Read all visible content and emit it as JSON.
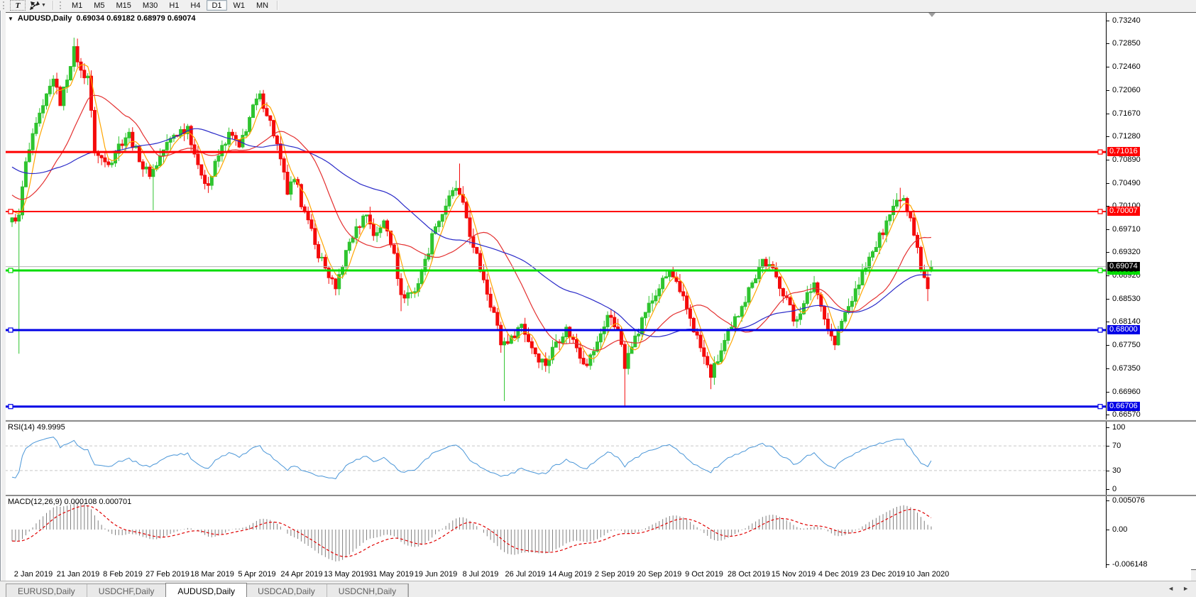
{
  "toolbar": {
    "text_tool_label": "T",
    "timeframes": [
      "M1",
      "M5",
      "M15",
      "M30",
      "H1",
      "H4",
      "D1",
      "W1",
      "MN"
    ],
    "active_timeframe": "D1"
  },
  "chart": {
    "title": "AUDUSD,Daily",
    "ohlc_line": "0.69034 0.69182 0.68979 0.69074",
    "price_axis_ticks": [
      "0.73240",
      "0.72850",
      "0.72460",
      "0.72060",
      "0.71670",
      "0.71280",
      "0.70890",
      "0.70490",
      "0.70100",
      "0.69710",
      "0.69320",
      "0.68920",
      "0.68530",
      "0.68140",
      "0.67750",
      "0.67350",
      "0.66960",
      "0.66570"
    ],
    "price_range": {
      "top": 0.7324,
      "bottom": 0.6657
    },
    "hlines": [
      {
        "label": "0.71016",
        "price": 0.71016,
        "color": "#FF0000",
        "thickness": 3,
        "text_color": "#FFFFFF",
        "handles": "right"
      },
      {
        "label": "0.70007",
        "price": 0.70007,
        "color": "#FF0000",
        "thickness": 2,
        "text_color": "#FFFFFF",
        "handles": "both"
      },
      {
        "label": "0.69010",
        "price": 0.6901,
        "color": "#00DC00",
        "thickness": 3,
        "text_color": "#003300",
        "handles": "both"
      },
      {
        "label": "0.68000",
        "price": 0.68,
        "color": "#0000E6",
        "thickness": 3,
        "text_color": "#FFFFFF",
        "handles": "both"
      },
      {
        "label": "0.66706",
        "price": 0.66706,
        "color": "#0000E6",
        "thickness": 3,
        "text_color": "#FFFFFF",
        "handles": "both"
      }
    ],
    "current_price": {
      "label": "0.69074",
      "price": 0.69074,
      "line_color": "#B4B4B4",
      "tag_bg": "#000000",
      "tag_text": "#FFFFFF"
    }
  },
  "chart_data": {
    "type": "candlestick",
    "symbol": "AUDUSD",
    "timeframe": "Daily",
    "ohlc_current": {
      "open": 0.69034,
      "high": 0.69182,
      "low": 0.68979,
      "close": 0.69074
    },
    "bars": 268,
    "first_open": 0.6983,
    "close_anchors": [
      [
        0,
        0.699
      ],
      [
        2,
        0.6995
      ],
      [
        4,
        0.7085
      ],
      [
        9,
        0.718
      ],
      [
        12,
        0.7225
      ],
      [
        14,
        0.718
      ],
      [
        18,
        0.728
      ],
      [
        20,
        0.724
      ],
      [
        22,
        0.723
      ],
      [
        24,
        0.71
      ],
      [
        28,
        0.708
      ],
      [
        31,
        0.7115
      ],
      [
        34,
        0.7135
      ],
      [
        37,
        0.7085
      ],
      [
        40,
        0.706
      ],
      [
        44,
        0.7105
      ],
      [
        47,
        0.713
      ],
      [
        51,
        0.7145
      ],
      [
        54,
        0.708
      ],
      [
        57,
        0.7045
      ],
      [
        60,
        0.7095
      ],
      [
        63,
        0.7135
      ],
      [
        66,
        0.711
      ],
      [
        69,
        0.716
      ],
      [
        72,
        0.72
      ],
      [
        75,
        0.7155
      ],
      [
        78,
        0.709
      ],
      [
        80,
        0.703
      ],
      [
        82,
        0.7055
      ],
      [
        85,
        0.7
      ],
      [
        88,
        0.6945
      ],
      [
        91,
        0.6905
      ],
      [
        94,
        0.687
      ],
      [
        97,
        0.6935
      ],
      [
        100,
        0.6975
      ],
      [
        103,
        0.6995
      ],
      [
        105,
        0.696
      ],
      [
        108,
        0.6985
      ],
      [
        111,
        0.693
      ],
      [
        113,
        0.686
      ],
      [
        117,
        0.6865
      ],
      [
        120,
        0.692
      ],
      [
        123,
        0.6975
      ],
      [
        126,
        0.701
      ],
      [
        129,
        0.704
      ],
      [
        132,
        0.699
      ],
      [
        134,
        0.694
      ],
      [
        137,
        0.6885
      ],
      [
        140,
        0.683
      ],
      [
        142,
        0.6775
      ],
      [
        145,
        0.679
      ],
      [
        148,
        0.681
      ],
      [
        151,
        0.677
      ],
      [
        155,
        0.674
      ],
      [
        158,
        0.678
      ],
      [
        161,
        0.6805
      ],
      [
        164,
        0.677
      ],
      [
        167,
        0.674
      ],
      [
        170,
        0.678
      ],
      [
        173,
        0.6825
      ],
      [
        176,
        0.68
      ],
      [
        178,
        0.6735
      ],
      [
        181,
        0.679
      ],
      [
        184,
        0.683
      ],
      [
        188,
        0.687
      ],
      [
        191,
        0.69
      ],
      [
        194,
        0.6865
      ],
      [
        197,
        0.682
      ],
      [
        200,
        0.677
      ],
      [
        203,
        0.672
      ],
      [
        206,
        0.6765
      ],
      [
        209,
        0.6805
      ],
      [
        212,
        0.684
      ],
      [
        215,
        0.688
      ],
      [
        218,
        0.692
      ],
      [
        222,
        0.689
      ],
      [
        225,
        0.6855
      ],
      [
        227,
        0.6815
      ],
      [
        230,
        0.6845
      ],
      [
        233,
        0.688
      ],
      [
        235,
        0.684
      ],
      [
        237,
        0.68
      ],
      [
        239,
        0.6775
      ],
      [
        241,
        0.6815
      ],
      [
        243,
        0.684
      ],
      [
        245,
        0.687
      ],
      [
        248,
        0.6905
      ],
      [
        251,
        0.694
      ],
      [
        254,
        0.6985
      ],
      [
        257,
        0.702
      ],
      [
        259,
        0.7023
      ],
      [
        261,
        0.699
      ],
      [
        263,
        0.694
      ],
      [
        264,
        0.69
      ],
      [
        266,
        0.687
      ],
      [
        267,
        0.69074
      ]
    ],
    "wick_overrides": [
      {
        "i": 2,
        "l": 0.676
      },
      {
        "i": 18,
        "h": 0.7295
      },
      {
        "i": 41,
        "l": 0.7003
      },
      {
        "i": 72,
        "h": 0.7206
      },
      {
        "i": 113,
        "l": 0.6832
      },
      {
        "i": 130,
        "h": 0.7082
      },
      {
        "i": 143,
        "l": 0.668
      },
      {
        "i": 178,
        "l": 0.6672
      },
      {
        "i": 203,
        "l": 0.67
      },
      {
        "i": 258,
        "h": 0.7041
      },
      {
        "i": 266,
        "l": 0.6849
      }
    ],
    "prehistory": {
      "bars": 60,
      "from": 0.719,
      "to": 0.7
    },
    "noise_amp": 0.001,
    "wick_amp": 0.0014,
    "moving_averages": [
      {
        "name": "MA fast",
        "period": 5,
        "color": "#FFA500"
      },
      {
        "name": "MA mid",
        "period": 20,
        "color": "#E43030"
      },
      {
        "name": "MA slow",
        "period": 50,
        "color": "#2A2AC8"
      }
    ],
    "x_axis_dates": [
      "2 Jan 2019",
      "21 Jan 2019",
      "8 Feb 2019",
      "27 Feb 2019",
      "18 Mar 2019",
      "5 Apr 2019",
      "24 Apr 2019",
      "13 May 2019",
      "31 May 2019",
      "19 Jun 2019",
      "8 Jul 2019",
      "26 Jul 2019",
      "14 Aug 2019",
      "2 Sep 2019",
      "20 Sep 2019",
      "9 Oct 2019",
      "28 Oct 2019",
      "15 Nov 2019",
      "4 Dec 2019",
      "23 Dec 2019",
      "10 Jan 2020"
    ],
    "indicators": [
      {
        "name": "RSI",
        "display": "RSI(14) 49.9995",
        "period": 14,
        "levels": [
          70,
          30
        ],
        "range": [
          0,
          100
        ],
        "axis_labels": [
          "100",
          "70",
          "30",
          "0"
        ],
        "color": "#4A96D8",
        "level_color": "#C8C8C8"
      },
      {
        "name": "MACD",
        "display": "MACD(12,26,9) 0.000108 0.000701",
        "params": [
          12,
          26,
          9
        ],
        "axis_labels": [
          "0.005076",
          "0.00",
          "-0.006148"
        ],
        "range": [
          -0.006148,
          0.005076
        ],
        "histogram_color": "#808080",
        "signal_color": "#E00000"
      }
    ]
  },
  "colors": {
    "candle_up": "#2FC42F",
    "candle_down": "#F40B0B",
    "background": "#FFFFFF"
  },
  "tabs": {
    "items": [
      "EURUSD,Daily",
      "USDCHF,Daily",
      "AUDUSD,Daily",
      "USDCAD,Daily",
      "USDCNH,Daily"
    ],
    "active": "AUDUSD,Daily",
    "nav_left": "◄",
    "nav_right": "►"
  }
}
